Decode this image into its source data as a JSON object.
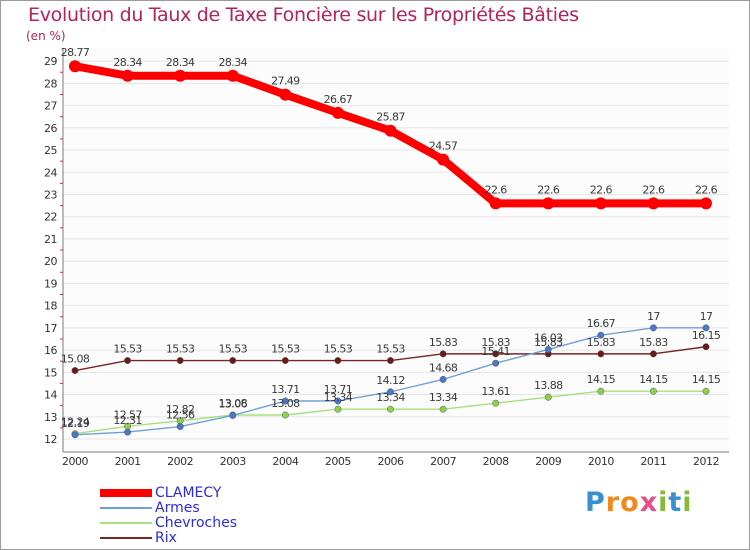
{
  "title": "Evolution du Taux de Taxe Foncière sur les Propriétés Bâties",
  "unit": "(en %)",
  "logo": "Proxiti",
  "chart_data": {
    "type": "line",
    "x": [
      "2000",
      "2001",
      "2002",
      "2003",
      "2004",
      "2005",
      "2006",
      "2007",
      "2008",
      "2009",
      "2010",
      "2011",
      "2012"
    ],
    "ylim": [
      12,
      29.5
    ],
    "yticks": [
      "12",
      "13",
      "14",
      "15",
      "16",
      "17",
      "18",
      "19",
      "20",
      "21",
      "22",
      "23",
      "24",
      "25",
      "26",
      "27",
      "28",
      "29"
    ],
    "grid": "horizontal",
    "legend_position": "bottom-left",
    "series": [
      {
        "name": "CLAMECY",
        "color": "#ff0000",
        "marker": "#ff0000",
        "values": [
          28.77,
          28.34,
          28.34,
          28.34,
          27.49,
          26.67,
          25.87,
          24.57,
          22.6,
          22.6,
          22.6,
          22.6,
          22.6
        ],
        "labels": [
          "28.77",
          "28.34",
          "28.34",
          "28.34",
          "27.49",
          "26.67",
          "25.87",
          "24.57",
          "22.6",
          "22.6",
          "22.6",
          "22.6",
          "22.6"
        ]
      },
      {
        "name": "Armes",
        "color": "#6ea0d8",
        "marker": "#4a78c8",
        "values": [
          12.19,
          12.31,
          12.56,
          13.06,
          13.71,
          13.71,
          14.12,
          14.68,
          15.41,
          16.03,
          16.67,
          17,
          17
        ],
        "labels": [
          "12.19",
          "12.31",
          "12.56",
          "13.06",
          "13.71",
          "13.71",
          "14.12",
          "14.68",
          "15.41",
          "16.03",
          "16.67",
          "17",
          "17"
        ]
      },
      {
        "name": "Chevroches",
        "color": "#a8e07c",
        "marker": "#8ed04c",
        "values": [
          12.24,
          12.57,
          12.82,
          13.08,
          13.08,
          13.34,
          13.34,
          13.34,
          13.61,
          13.88,
          14.15,
          14.15,
          14.15
        ],
        "labels": [
          "12.24",
          "12.57",
          "12.82",
          "13.08",
          "13.08",
          "13.34",
          "13.34",
          "13.34",
          "13.61",
          "13.88",
          "14.15",
          "14.15",
          "14.15"
        ]
      },
      {
        "name": "Rix",
        "color": "#7a2424",
        "marker": "#6a1a1a",
        "values": [
          15.08,
          15.53,
          15.53,
          15.53,
          15.53,
          15.53,
          15.53,
          15.83,
          15.83,
          15.83,
          15.83,
          15.83,
          16.15
        ],
        "labels": [
          "15.08",
          "15.53",
          "15.53",
          "15.53",
          "15.53",
          "15.53",
          "15.53",
          "15.83",
          "15.83",
          "15.83",
          "15.83",
          "15.83",
          "16.15"
        ]
      }
    ]
  }
}
